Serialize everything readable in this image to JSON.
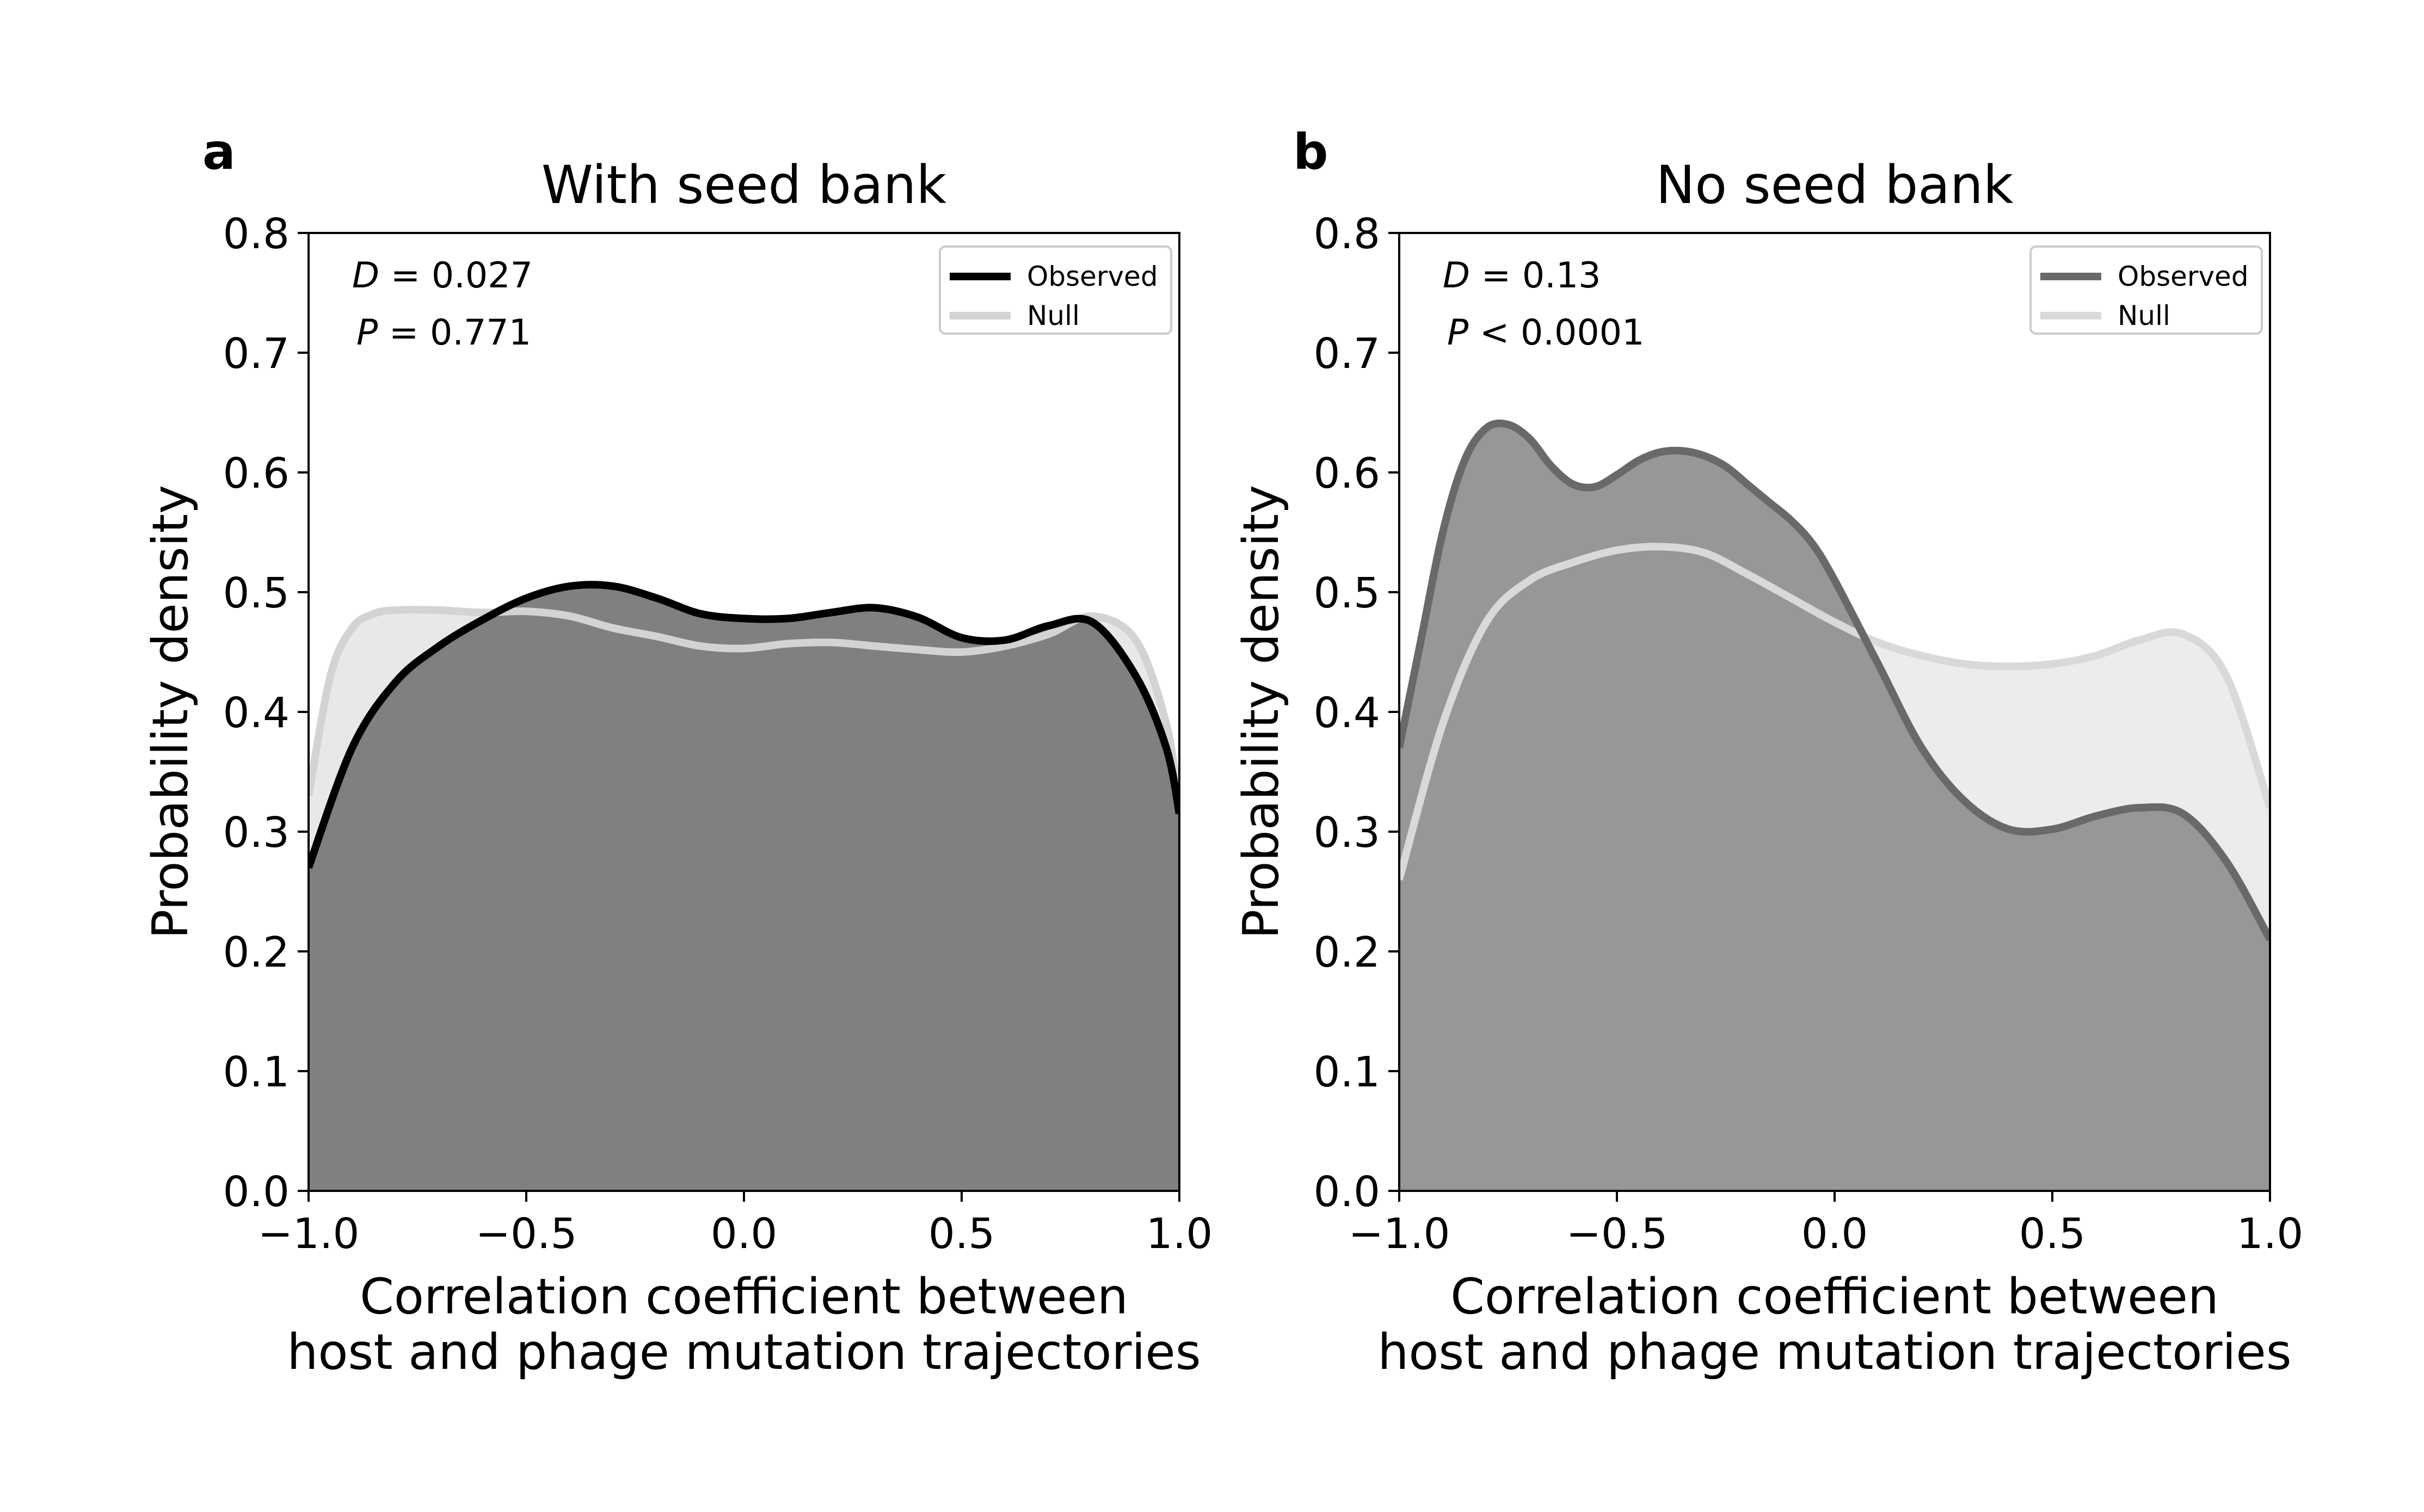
{
  "chart_data": [
    {
      "type": "area",
      "panel_label": "a",
      "title": "With seed bank",
      "xlabel": "Correlation coefficient between\nhost and phage mutation trajectories",
      "ylabel": "Probability density",
      "xlim": [
        -1.0,
        1.0
      ],
      "ylim": [
        0.0,
        0.8
      ],
      "xticks": [
        "−1.0",
        "−0.5",
        "0.0",
        "0.5",
        "1.0"
      ],
      "yticks": [
        "0.0",
        "0.1",
        "0.2",
        "0.3",
        "0.4",
        "0.5",
        "0.6",
        "0.7",
        "0.8"
      ],
      "grid": false,
      "legend_position": "top-right",
      "stats": {
        "d_label": "D",
        "d_text": " = 0.027",
        "p_label": "P",
        "p_text": " = 0.771"
      },
      "series": [
        {
          "name": "Observed",
          "color": "#000000",
          "fill": "#808080",
          "x": [
            -1.0,
            -0.9,
            -0.8,
            -0.7,
            -0.6,
            -0.5,
            -0.4,
            -0.3,
            -0.2,
            -0.1,
            0.0,
            0.1,
            0.2,
            0.3,
            0.4,
            0.5,
            0.6,
            0.7,
            0.8,
            0.9,
            0.97,
            1.0
          ],
          "y": [
            0.27,
            0.37,
            0.425,
            0.455,
            0.477,
            0.495,
            0.505,
            0.505,
            0.495,
            0.482,
            0.478,
            0.478,
            0.483,
            0.487,
            0.479,
            0.462,
            0.46,
            0.472,
            0.475,
            0.43,
            0.37,
            0.315
          ]
        },
        {
          "name": "Null",
          "color": "#d3d3d3",
          "fill": "#e8e8e8",
          "x": [
            -1.0,
            -0.95,
            -0.9,
            -0.85,
            -0.8,
            -0.7,
            -0.6,
            -0.5,
            -0.4,
            -0.3,
            -0.2,
            -0.1,
            0.0,
            0.1,
            0.2,
            0.3,
            0.4,
            0.5,
            0.6,
            0.7,
            0.8,
            0.9,
            0.97,
            1.0
          ],
          "y": [
            0.33,
            0.43,
            0.47,
            0.482,
            0.485,
            0.485,
            0.483,
            0.484,
            0.48,
            0.47,
            0.463,
            0.455,
            0.453,
            0.457,
            0.458,
            0.455,
            0.452,
            0.45,
            0.455,
            0.465,
            0.48,
            0.46,
            0.39,
            0.32
          ]
        }
      ]
    },
    {
      "type": "area",
      "panel_label": "b",
      "title": "No seed bank",
      "xlabel": "Correlation coefficient between\nhost and phage mutation trajectories",
      "ylabel": "Probability density",
      "xlim": [
        -1.0,
        1.0
      ],
      "ylim": [
        0.0,
        0.8
      ],
      "xticks": [
        "−1.0",
        "−0.5",
        "0.0",
        "0.5",
        "1.0"
      ],
      "yticks": [
        "0.0",
        "0.1",
        "0.2",
        "0.3",
        "0.4",
        "0.5",
        "0.6",
        "0.7",
        "0.8"
      ],
      "grid": false,
      "legend_position": "top-right",
      "stats": {
        "d_label": "D",
        "d_text": " = 0.13",
        "p_label": "P",
        "p_text": " < 0.0001"
      },
      "series": [
        {
          "name": "Observed",
          "color": "#696969",
          "fill": "#979797",
          "x": [
            -1.0,
            -0.95,
            -0.9,
            -0.85,
            -0.8,
            -0.75,
            -0.7,
            -0.65,
            -0.6,
            -0.55,
            -0.5,
            -0.45,
            -0.4,
            -0.35,
            -0.3,
            -0.25,
            -0.2,
            -0.15,
            -0.1,
            -0.05,
            0.0,
            0.1,
            0.2,
            0.3,
            0.4,
            0.5,
            0.6,
            0.7,
            0.8,
            0.9,
            1.0
          ],
          "y": [
            0.37,
            0.46,
            0.55,
            0.61,
            0.637,
            0.64,
            0.628,
            0.605,
            0.59,
            0.588,
            0.598,
            0.61,
            0.617,
            0.618,
            0.614,
            0.605,
            0.59,
            0.575,
            0.56,
            0.54,
            0.51,
            0.44,
            0.37,
            0.325,
            0.302,
            0.302,
            0.313,
            0.32,
            0.315,
            0.275,
            0.21
          ]
        },
        {
          "name": "Null",
          "color": "#d9d9d9",
          "fill": "#ececec",
          "x": [
            -1.0,
            -0.9,
            -0.8,
            -0.7,
            -0.6,
            -0.5,
            -0.4,
            -0.3,
            -0.2,
            -0.1,
            0.0,
            0.1,
            0.2,
            0.3,
            0.4,
            0.5,
            0.6,
            0.7,
            0.8,
            0.9,
            1.0
          ],
          "y": [
            0.26,
            0.39,
            0.475,
            0.51,
            0.525,
            0.535,
            0.538,
            0.533,
            0.515,
            0.495,
            0.475,
            0.458,
            0.447,
            0.44,
            0.438,
            0.44,
            0.447,
            0.46,
            0.465,
            0.43,
            0.32
          ]
        }
      ]
    }
  ]
}
